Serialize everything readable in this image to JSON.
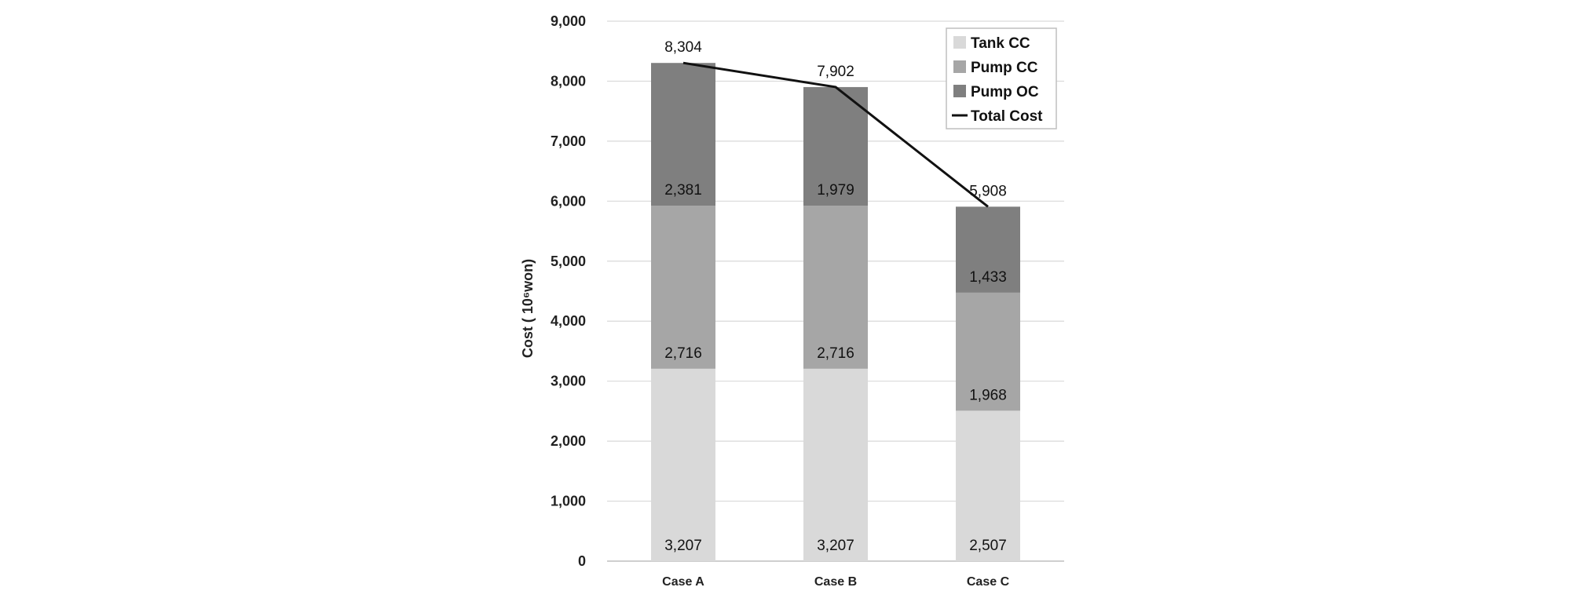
{
  "chart_data": {
    "type": "bar",
    "stacked": true,
    "categories": [
      "Case A",
      "Case B",
      "Case C"
    ],
    "series": [
      {
        "name": "Tank CC",
        "values": [
          3207,
          3207,
          2507
        ],
        "labels": [
          "3,207",
          "3,207",
          "2,507"
        ],
        "color": "#d9d9d9"
      },
      {
        "name": "Pump CC",
        "values": [
          2716,
          2716,
          1968
        ],
        "labels": [
          "2,716",
          "2,716",
          "1,968"
        ],
        "color": "#a6a6a6"
      },
      {
        "name": "Pump OC",
        "values": [
          2381,
          1979,
          1433
        ],
        "labels": [
          "2,381",
          "1,979",
          "1,433"
        ],
        "color": "#7f7f7f"
      }
    ],
    "line": {
      "name": "Total Cost",
      "values": [
        8304,
        7902,
        5908
      ],
      "labels": [
        "8,304",
        "7,902",
        "5,908"
      ],
      "color": "#111111"
    },
    "ylabel": "Cost ( 10⁶won)",
    "yticks": [
      0,
      1000,
      2000,
      3000,
      4000,
      5000,
      6000,
      7000,
      8000,
      9000
    ],
    "ytick_labels": [
      "0",
      "1,000",
      "2,000",
      "3,000",
      "4,000",
      "5,000",
      "6,000",
      "7,000",
      "8,000",
      "9,000"
    ],
    "ylim": [
      0,
      9000
    ],
    "grid": true,
    "legend_position": "top-right"
  }
}
